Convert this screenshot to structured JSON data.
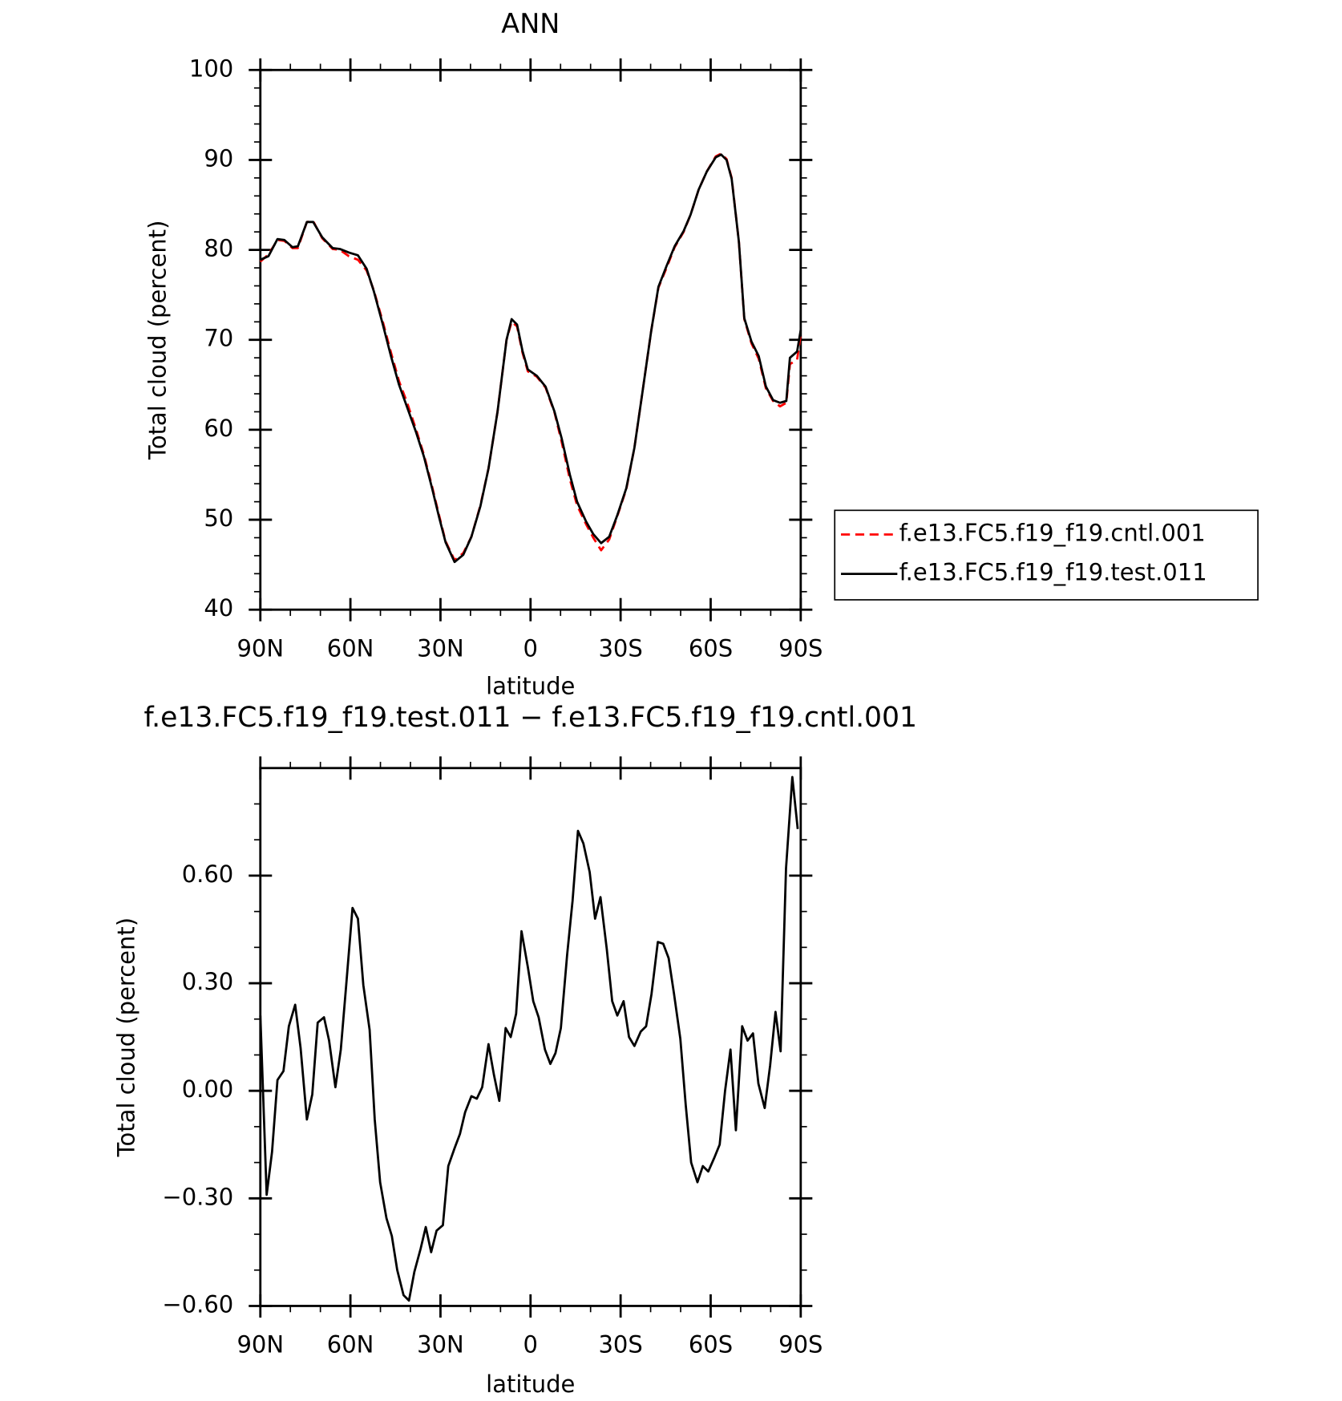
{
  "chart_data": [
    {
      "type": "line",
      "title": "ANN",
      "xlabel": "latitude",
      "ylabel": "Total cloud (percent)",
      "xlim": [
        90,
        -90
      ],
      "xticks": [
        {
          "value": 90,
          "label": "90N"
        },
        {
          "value": 60,
          "label": "60N"
        },
        {
          "value": 30,
          "label": "30N"
        },
        0,
        {
          "value": -30,
          "label": "30S"
        },
        {
          "value": -60,
          "label": "60S"
        },
        {
          "value": -90,
          "label": "90S"
        }
      ],
      "xminorticks": [
        80,
        70,
        50,
        40,
        20,
        10,
        -10,
        -20,
        -40,
        -50,
        -70,
        -80
      ],
      "ylim": [
        40,
        100
      ],
      "yticks": [
        40,
        50,
        60,
        70,
        80,
        90,
        100
      ],
      "yminorticks": [
        42,
        44,
        46,
        48,
        52,
        54,
        56,
        58,
        62,
        64,
        66,
        68,
        72,
        74,
        76,
        78,
        82,
        84,
        86,
        88,
        92,
        94,
        96,
        98
      ],
      "legend": "right",
      "x": [
        90,
        87.3,
        84.3,
        82,
        79.3,
        77.5,
        74.5,
        72.4,
        69.4,
        65.9,
        63.5,
        60.5,
        57.5,
        54.6,
        52.2,
        49.2,
        46.5,
        43.8,
        41.1,
        38.1,
        35.5,
        32.8,
        30.4,
        28.3,
        25.3,
        22.4,
        19.7,
        16.7,
        14,
        11,
        8,
        6.3,
        4.5,
        2.7,
        0.9,
        -2.1,
        -5,
        -8,
        -10.4,
        -13.1,
        -15.5,
        -18.5,
        -20.9,
        -23.5,
        -26.2,
        -28.9,
        -31.9,
        -34.6,
        -37.2,
        -40.2,
        -42.6,
        -45.3,
        -48,
        -51,
        -53.3,
        -56,
        -58.7,
        -61.7,
        -63.5,
        -65.3,
        -67,
        -69.4,
        -71.2,
        -73.6,
        -76,
        -78.4,
        -80.8,
        -83.1,
        -85.2,
        -86.4,
        -88.8,
        -90
      ],
      "series": [
        {
          "name": "f.e13.FC5.f19_f19.cntl.001",
          "color": "#ff0000",
          "dash": true,
          "values": [
            78.7,
            79.5,
            81.1,
            81.0,
            80.2,
            80.2,
            83.1,
            83.2,
            81.3,
            80.1,
            80.0,
            79.3,
            78.9,
            77.7,
            75.5,
            72.0,
            68.6,
            65.4,
            63.0,
            60.0,
            57.2,
            53.7,
            50.4,
            47.6,
            45.5,
            46.3,
            48.1,
            51.6,
            55.7,
            62.0,
            70.0,
            72.0,
            71.5,
            68.6,
            66.5,
            65.9,
            64.7,
            61.9,
            58.6,
            54.5,
            51.6,
            49.5,
            48.0,
            46.6,
            47.8,
            50.4,
            53.4,
            58.0,
            64.0,
            71.0,
            75.8,
            78.0,
            80.3,
            82.0,
            83.9,
            86.7,
            88.7,
            90.4,
            90.7,
            90.1,
            88.0,
            80.9,
            72.3,
            69.6,
            67.9,
            64.6,
            63.2,
            62.6,
            63.0,
            67.3,
            67.8,
            70.6
          ]
        },
        {
          "name": "f.e13.FC5.f19_f19.test.011",
          "color": "#000000",
          "dash": false,
          "values": [
            78.9,
            79.3,
            81.2,
            81.1,
            80.3,
            80.4,
            83.1,
            83.1,
            81.4,
            80.2,
            80.1,
            79.7,
            79.4,
            77.9,
            75.4,
            71.7,
            68.2,
            65.0,
            62.5,
            59.7,
            57.0,
            53.5,
            50.2,
            47.5,
            45.3,
            46.1,
            48.1,
            51.5,
            55.7,
            62.0,
            70.0,
            72.3,
            71.7,
            68.8,
            66.7,
            66.0,
            64.8,
            62.0,
            59.0,
            55.0,
            52.0,
            49.8,
            48.4,
            47.4,
            48.1,
            50.5,
            53.5,
            58.0,
            64.0,
            71.0,
            75.9,
            78.2,
            80.4,
            82.1,
            83.9,
            86.7,
            88.7,
            90.3,
            90.6,
            90.0,
            87.9,
            80.9,
            72.4,
            69.8,
            68.2,
            64.8,
            63.3,
            63.0,
            63.2,
            68.0,
            68.7,
            71.1
          ]
        }
      ]
    },
    {
      "type": "line",
      "title": "f.e13.FC5.f19_f19.test.011 − f.e13.FC5.f19_f19.cntl.001",
      "xlabel": "latitude",
      "ylabel": "Total cloud (percent)",
      "xlim": [
        90,
        -90
      ],
      "xticks": [
        {
          "value": 90,
          "label": "90N"
        },
        {
          "value": 60,
          "label": "60N"
        },
        {
          "value": 30,
          "label": "30N"
        },
        0,
        {
          "value": -30,
          "label": "30S"
        },
        {
          "value": -60,
          "label": "60S"
        },
        {
          "value": -90,
          "label": "90S"
        }
      ],
      "xminorticks": [
        80,
        70,
        50,
        40,
        20,
        10,
        -10,
        -20,
        -40,
        -50,
        -70,
        -80
      ],
      "ylim": [
        -0.6,
        0.9
      ],
      "yticks": [
        {
          "value": -0.6,
          "label": "−0.60"
        },
        {
          "value": -0.3,
          "label": "−0.30"
        },
        {
          "value": 0,
          "label": "0.00"
        },
        {
          "value": 0.3,
          "label": "0.30"
        },
        {
          "value": 0.6,
          "label": "0.60"
        }
      ],
      "yminorticks": [
        -0.5,
        -0.4,
        -0.2,
        -0.1,
        0.1,
        0.2,
        0.4,
        0.5,
        0.7,
        0.8
      ],
      "x": [
        90.0,
        87.9,
        86.1,
        84.3,
        82.3,
        80.5,
        78.4,
        76.6,
        74.5,
        72.7,
        70.9,
        68.8,
        67.1,
        65.0,
        63.2,
        61.4,
        59.3,
        57.5,
        55.7,
        53.6,
        51.9,
        50.1,
        48.0,
        46.2,
        44.4,
        42.3,
        40.5,
        38.7,
        36.6,
        34.9,
        33.1,
        31.3,
        29.2,
        27.4,
        25.3,
        23.5,
        21.8,
        19.7,
        17.9,
        16.1,
        14.0,
        12.2,
        10.4,
        8.3,
        6.6,
        4.8,
        3.0,
        0.9,
        -0.9,
        -2.7,
        -4.8,
        -6.6,
        -8.3,
        -10.1,
        -12.2,
        -14.0,
        -15.8,
        -17.6,
        -19.7,
        -21.5,
        -23.3,
        -25.4,
        -27.2,
        -28.9,
        -31.0,
        -32.8,
        -34.6,
        -36.7,
        -38.5,
        -40.3,
        -42.4,
        -44.2,
        -46.0,
        -47.8,
        -49.9,
        -51.7,
        -53.5,
        -55.6,
        -57.4,
        -59.2,
        -61.3,
        -63.0,
        -64.8,
        -66.6,
        -68.4,
        -70.5,
        -72.3,
        -74.1,
        -75.9,
        -78.0,
        -79.8,
        -81.6,
        -83.3,
        -85.1,
        -87.2,
        -89.0
      ],
      "series": [
        {
          "color": "#000000",
          "dash": false,
          "values": [
            0.21,
            -0.29,
            -0.17,
            0.03,
            0.055,
            0.18,
            0.24,
            0.12,
            -0.08,
            -0.01,
            0.19,
            0.205,
            0.14,
            0.01,
            0.115,
            0.295,
            0.51,
            0.48,
            0.295,
            0.17,
            -0.08,
            -0.255,
            -0.355,
            -0.405,
            -0.5,
            -0.57,
            -0.585,
            -0.505,
            -0.44,
            -0.38,
            -0.45,
            -0.39,
            -0.375,
            -0.21,
            -0.16,
            -0.12,
            -0.06,
            -0.015,
            -0.022,
            0.01,
            0.13,
            0.045,
            -0.028,
            0.175,
            0.15,
            0.215,
            0.445,
            0.345,
            0.25,
            0.205,
            0.115,
            0.075,
            0.105,
            0.175,
            0.38,
            0.53,
            0.725,
            0.69,
            0.61,
            0.48,
            0.54,
            0.395,
            0.25,
            0.21,
            0.25,
            0.15,
            0.125,
            0.165,
            0.18,
            0.27,
            0.415,
            0.41,
            0.37,
            0.27,
            0.145,
            -0.04,
            -0.2,
            -0.255,
            -0.21,
            -0.225,
            -0.185,
            -0.15,
            0,
            0.115,
            -0.11,
            0.18,
            0.14,
            0.16,
            0.02,
            -0.048,
            0.07,
            0.22,
            0.11,
            0.62,
            0.875,
            0.73
          ]
        }
      ]
    }
  ]
}
